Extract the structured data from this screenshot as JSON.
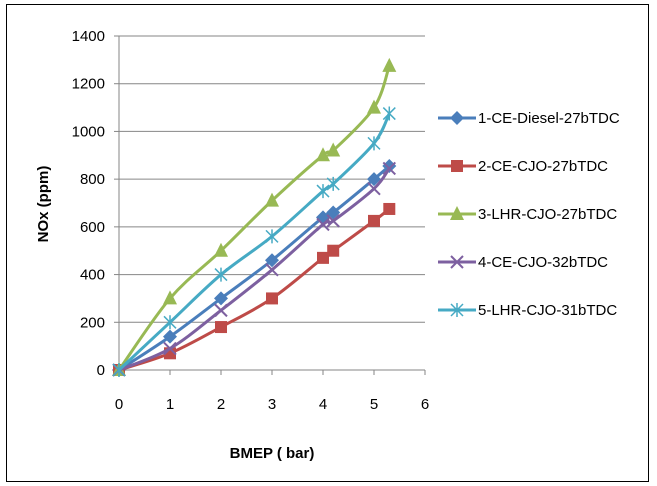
{
  "chart_data": {
    "type": "line",
    "title": "",
    "xlabel": "BMEP ( bar)",
    "ylabel": "NOx (ppm)",
    "xlim": [
      0,
      6
    ],
    "ylim": [
      0,
      1400
    ],
    "xticks": [
      0,
      1,
      2,
      3,
      4,
      5,
      6
    ],
    "yticks": [
      0,
      200,
      400,
      600,
      800,
      1000,
      1200,
      1400
    ],
    "grid": "horizontal",
    "legend_position": "right",
    "series": [
      {
        "name": "1-CE-Diesel-27bTDC",
        "color": "#4a7ebb",
        "marker": "diamond",
        "x": [
          0,
          1,
          2,
          3,
          4,
          4.2,
          5,
          5.3
        ],
        "y": [
          0,
          140,
          300,
          460,
          640,
          660,
          800,
          855
        ]
      },
      {
        "name": "2-CE-CJO-27bTDC",
        "color": "#be4b48",
        "marker": "square",
        "x": [
          0,
          1,
          2,
          3,
          4,
          4.2,
          5,
          5.3
        ],
        "y": [
          0,
          70,
          180,
          300,
          470,
          500,
          625,
          675
        ]
      },
      {
        "name": "3-LHR-CJO-27bTDC",
        "color": "#98b954",
        "marker": "triangle",
        "x": [
          0,
          1,
          2,
          3,
          4,
          4.2,
          5,
          5.3
        ],
        "y": [
          0,
          300,
          500,
          710,
          900,
          920,
          1100,
          1275
        ]
      },
      {
        "name": "4-CE-CJO-32bTDC",
        "color": "#7d60a0",
        "marker": "x",
        "x": [
          0,
          1,
          2,
          3,
          4,
          4.2,
          5,
          5.3
        ],
        "y": [
          0,
          90,
          250,
          420,
          610,
          625,
          760,
          845
        ]
      },
      {
        "name": "5-LHR-CJO-31bTDC",
        "color": "#46aac4",
        "marker": "star",
        "x": [
          0,
          1,
          2,
          3,
          4,
          4.2,
          5,
          5.3
        ],
        "y": [
          0,
          200,
          400,
          560,
          750,
          780,
          950,
          1075
        ]
      }
    ]
  }
}
